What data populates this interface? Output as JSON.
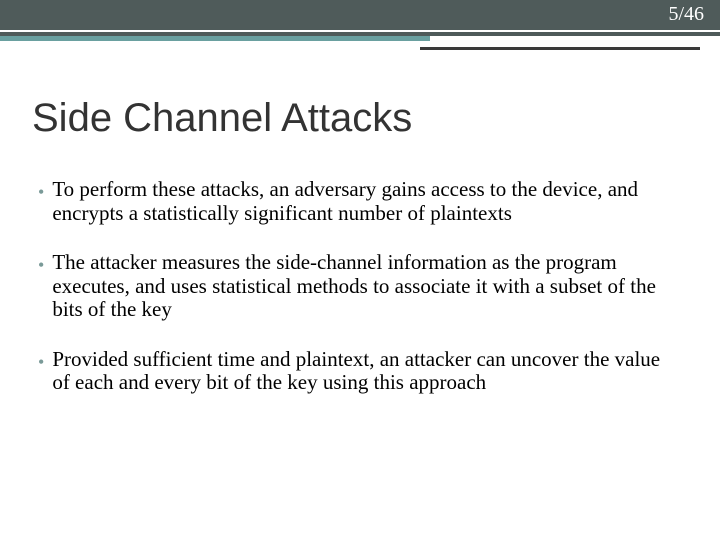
{
  "page": {
    "current": 5,
    "total": 46,
    "separator": "/"
  },
  "title": "Side Channel Attacks",
  "bullets": [
    "To perform these attacks, an adversary gains access to the device, and encrypts a statistically significant number of plaintexts",
    "The attacker measures the side-channel information as the program executes, and uses statistical methods to associate it with a subset of the bits of the key",
    "Provided sufficient time and plaintext, an attacker can uncover the value of each and every bit of the key using this approach"
  ],
  "colors": {
    "header_bg": "#4f5b5a",
    "teal_accent": "#6aa0a0",
    "dark_underline": "#3a3a3a",
    "bullet_marker": "#7a9a98",
    "title_color": "#333333",
    "text_color": "#000000",
    "background": "#ffffff"
  },
  "typography": {
    "title_font": "Trebuchet MS",
    "title_size_pt": 30,
    "body_font": "Georgia",
    "body_size_pt": 16,
    "page_number_size_pt": 15
  }
}
